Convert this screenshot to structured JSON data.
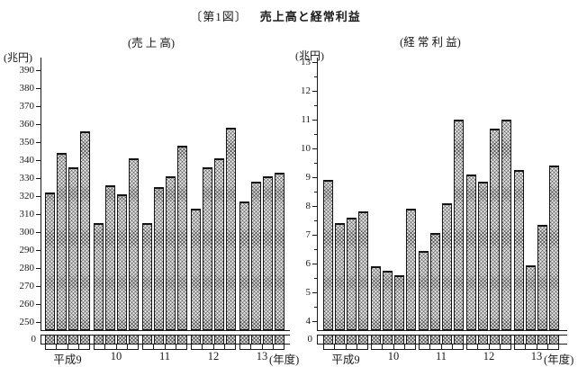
{
  "page": {
    "title_prefix": "〔第1図〕",
    "title_main": "売上高と経常利益"
  },
  "colors": {
    "ink": "#1a1a1a",
    "bar_fill": "#e3e3e3",
    "background": "#ffffff"
  },
  "chart_data": [
    {
      "type": "bar",
      "title": "(売  上  高)",
      "unit_label": "(兆円)",
      "ylabel": "兆円",
      "x_group_labels": [
        "平成9",
        "10",
        "11",
        "12",
        "13"
      ],
      "x_axis_suffix": "(年度)",
      "bars_per_group": 4,
      "values": [
        322,
        344,
        336,
        356,
        305,
        326,
        321,
        341,
        305,
        325,
        331,
        348,
        313,
        336,
        341,
        358,
        317,
        328,
        331,
        333
      ],
      "ylim": [
        250,
        390
      ],
      "ytick_step": 10,
      "minor_tick_step": null,
      "axis_break_to_zero": true,
      "zero_label": "0",
      "grid": false,
      "legend": false
    },
    {
      "type": "bar",
      "title": "(経 常 利 益)",
      "unit_label": "(兆円)",
      "ylabel": "兆円",
      "x_group_labels": [
        "平成9",
        "10",
        "11",
        "12",
        "13"
      ],
      "x_axis_suffix": "(年度)",
      "bars_per_group": 4,
      "values": [
        8.9,
        7.4,
        7.6,
        7.8,
        5.9,
        5.75,
        5.6,
        7.9,
        6.45,
        7.05,
        8.1,
        11.0,
        9.1,
        8.85,
        10.7,
        11.0,
        9.25,
        5.95,
        7.35,
        9.4
      ],
      "ylim": [
        4,
        13
      ],
      "ytick_step": 1,
      "minor_tick_step": 0.5,
      "axis_break_to_zero": true,
      "zero_label": "0",
      "grid": false,
      "legend": false
    }
  ]
}
